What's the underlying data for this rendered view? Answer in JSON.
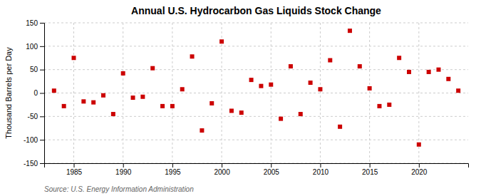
{
  "chart_data": {
    "type": "scatter",
    "title": "Annual U.S. Hydrocarbon Gas Liquids Stock Change",
    "y_label": "Thousand Barrels per Day",
    "annotations": [
      "Source: U.S. Energy Information Administration"
    ],
    "x": [
      1983,
      1984,
      1985,
      1986,
      1987,
      1988,
      1989,
      1990,
      1991,
      1992,
      1993,
      1994,
      1995,
      1996,
      1997,
      1998,
      1999,
      2000,
      2001,
      2002,
      2003,
      2004,
      2005,
      2006,
      2007,
      2008,
      2009,
      2010,
      2011,
      2012,
      2013,
      2014,
      2015,
      2016,
      2017,
      2018,
      2019,
      2020,
      2021,
      2022,
      2023,
      2024
    ],
    "values": [
      5,
      -28,
      75,
      -18,
      -20,
      -5,
      -45,
      42,
      -10,
      -8,
      53,
      -28,
      -28,
      8,
      78,
      -80,
      -22,
      110,
      -38,
      -42,
      28,
      15,
      18,
      -55,
      57,
      -45,
      22,
      8,
      70,
      -72,
      133,
      57,
      10,
      -28,
      -25,
      75,
      45,
      -110,
      45,
      50,
      30,
      5
    ],
    "color": "#cc0000",
    "marker": "square",
    "xlim": [
      1982,
      2025
    ],
    "xticks": [
      1985,
      1990,
      1995,
      2000,
      2005,
      2010,
      2015,
      2020
    ],
    "ylim": [
      -150,
      150
    ],
    "yticks": [
      -150,
      -100,
      -50,
      0,
      50,
      100,
      150
    ],
    "grid": true
  }
}
